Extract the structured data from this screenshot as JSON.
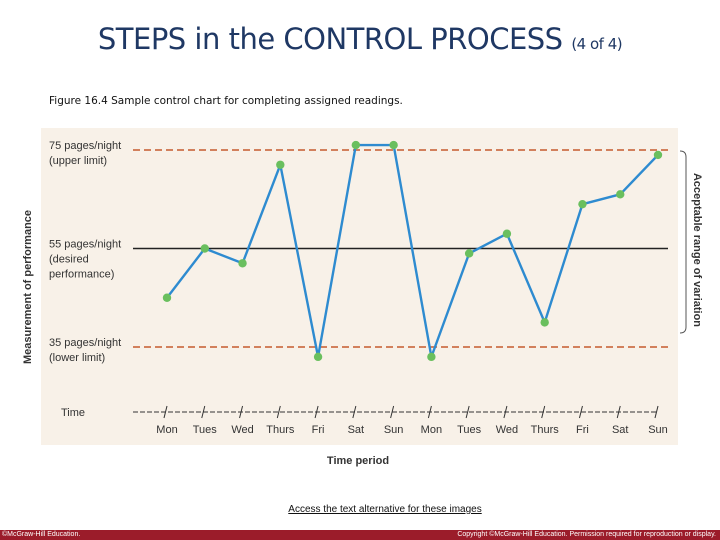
{
  "slide": {
    "title_main": "STEPS in the CONTROL PROCESS",
    "title_sub": "(4 of 4)",
    "caption": "Figure 16.4 Sample control chart for completing assigned readings.",
    "access_link": "Access the text alternative for these images",
    "footer_left": "©McGraw-Hill Education.",
    "footer_right": "Copyright ©McGraw-Hill Education. Permission required for reproduction or display."
  },
  "colors": {
    "title": "#1f3864",
    "series_line": "#2e8bd0",
    "series_point": "#6abf5e",
    "limit_line": "#c65a2e",
    "desired_line": "#222222",
    "chart_background": "#f8f1e8",
    "footer_bar": "#9b1c2a"
  },
  "chart_data": {
    "type": "line",
    "xlabel": "Time period",
    "ylabel": "Measurement of performance",
    "x_axis_title": "Time",
    "right_bracket_label": "Acceptable range of variation",
    "categories": [
      "Mon",
      "Tues",
      "Wed",
      "Thurs",
      "Fri",
      "Sat",
      "Sun",
      "Mon",
      "Tues",
      "Wed",
      "Thurs",
      "Fri",
      "Sat",
      "Sun"
    ],
    "values": [
      45,
      55,
      52,
      72,
      33,
      76,
      76,
      33,
      54,
      58,
      40,
      64,
      66,
      74
    ],
    "ylim": [
      28,
      80
    ],
    "reference_lines": [
      {
        "value": 75,
        "label_line1": "75 pages/night",
        "label_line2": "(upper limit)",
        "label_line3": "",
        "style": "dashed"
      },
      {
        "value": 55,
        "label_line1": "55 pages/night",
        "label_line2": "(desired",
        "label_line3": "performance)",
        "style": "solid"
      },
      {
        "value": 35,
        "label_line1": "35 pages/night",
        "label_line2": "(lower limit)",
        "label_line3": "",
        "style": "dashed"
      }
    ],
    "grid": false,
    "legend": "none"
  }
}
